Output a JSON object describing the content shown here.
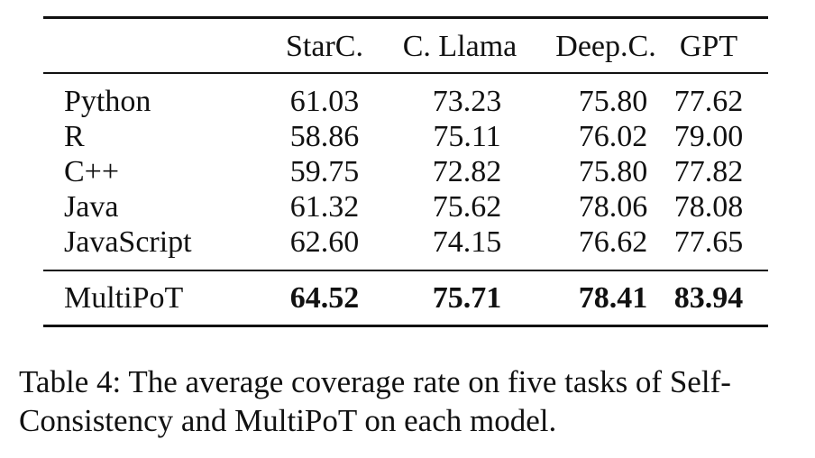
{
  "table": {
    "columns": [
      "StarC.",
      "C. Llama",
      "Deep.C.",
      "GPT"
    ],
    "rows": [
      {
        "label": "Python",
        "values": [
          "61.03",
          "73.23",
          "75.80",
          "77.62"
        ]
      },
      {
        "label": "R",
        "values": [
          "58.86",
          "75.11",
          "76.02",
          "79.00"
        ]
      },
      {
        "label": "C++",
        "values": [
          "59.75",
          "72.82",
          "75.80",
          "77.82"
        ]
      },
      {
        "label": "Java",
        "values": [
          "61.32",
          "75.62",
          "78.06",
          "78.08"
        ]
      },
      {
        "label": "JavaScript",
        "values": [
          "62.60",
          "74.15",
          "76.62",
          "77.65"
        ]
      }
    ],
    "summary_row": {
      "label": "MultiPoT",
      "values": [
        "64.52",
        "75.71",
        "78.41",
        "83.94"
      ]
    }
  },
  "caption": "Table 4: The average coverage rate on five tasks of Self-Consistency and MultiPoT on each model."
}
